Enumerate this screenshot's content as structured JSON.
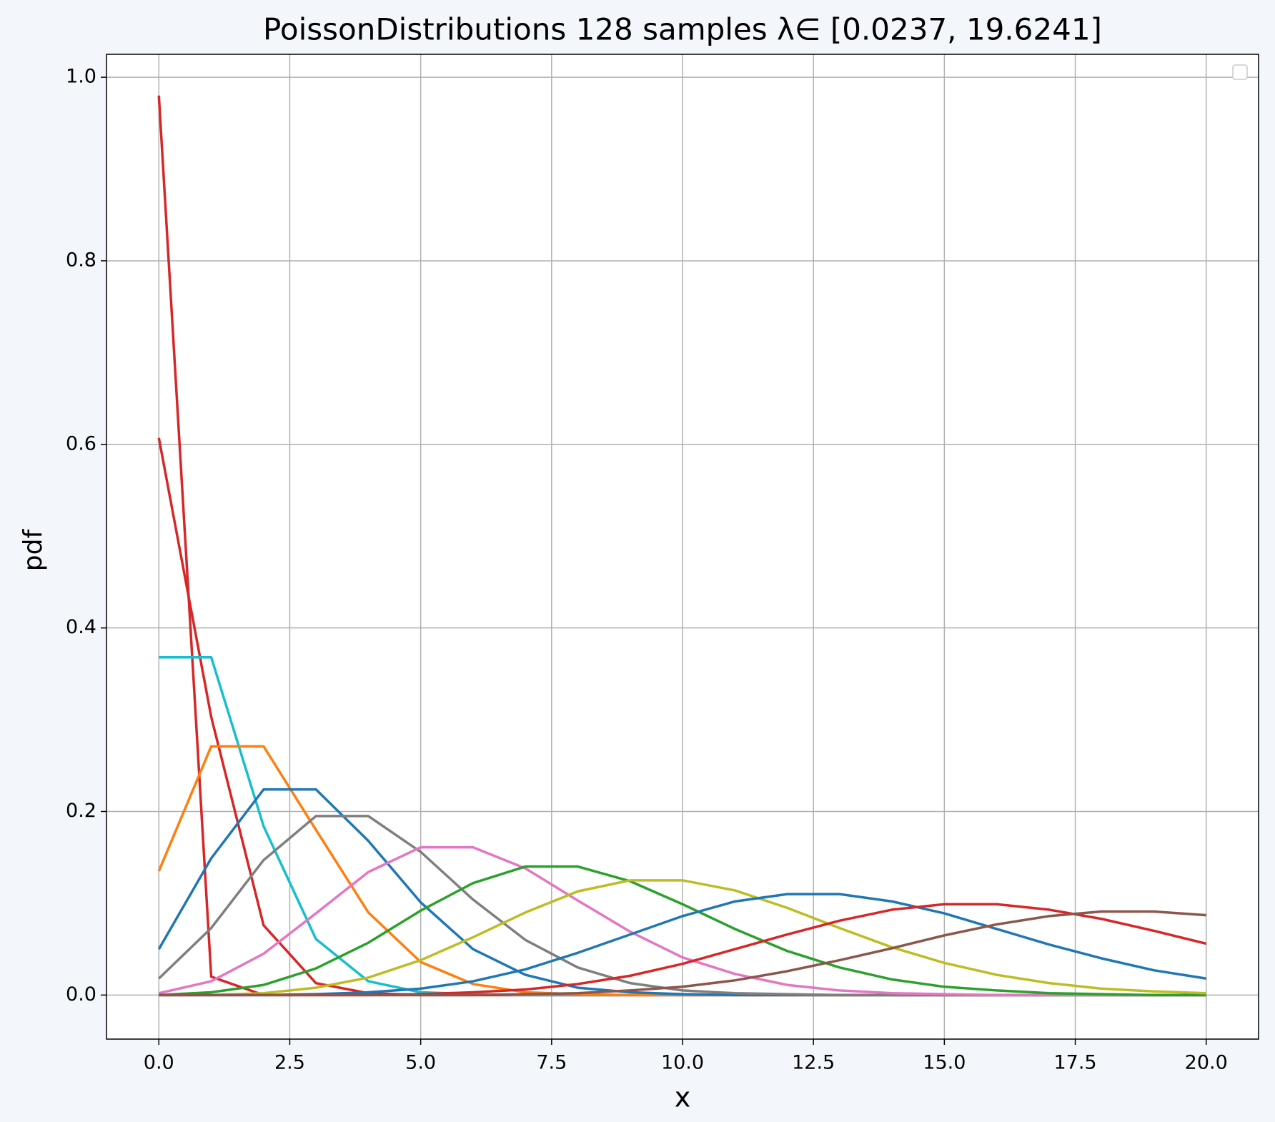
{
  "chart_data": {
    "type": "line",
    "title": "PoissonDistributions 128 samples λ∈ [0.0237, 19.6241]",
    "x_label": "x",
    "y_label": "pdf",
    "x": [
      0,
      1,
      2,
      3,
      4,
      5,
      6,
      7,
      8,
      9,
      10,
      11,
      12,
      13,
      14,
      15,
      16,
      17,
      18,
      19,
      20
    ],
    "series": [
      {
        "color": "#d62728",
        "values": [
          0.98,
          0.02,
          0.0,
          0,
          0,
          0,
          0,
          0,
          0,
          0,
          0,
          0,
          0,
          0,
          0,
          0,
          0,
          0,
          0,
          0,
          0
        ]
      },
      {
        "color": "#d62728",
        "values": [
          0.607,
          0.303,
          0.076,
          0.013,
          0.002,
          0,
          0,
          0,
          0,
          0,
          0,
          0,
          0,
          0,
          0,
          0,
          0,
          0,
          0,
          0,
          0
        ]
      },
      {
        "color": "#17becf",
        "values": [
          0.368,
          0.368,
          0.184,
          0.061,
          0.015,
          0.003,
          0.001,
          0,
          0,
          0,
          0,
          0,
          0,
          0,
          0,
          0,
          0,
          0,
          0,
          0,
          0
        ]
      },
      {
        "color": "#ff7f0e",
        "values": [
          0.135,
          0.271,
          0.271,
          0.18,
          0.09,
          0.036,
          0.012,
          0.003,
          0.001,
          0,
          0,
          0,
          0,
          0,
          0,
          0,
          0,
          0,
          0,
          0,
          0
        ]
      },
      {
        "color": "#1f77b4",
        "values": [
          0.05,
          0.149,
          0.224,
          0.224,
          0.168,
          0.101,
          0.05,
          0.022,
          0.008,
          0.003,
          0.001,
          0,
          0,
          0,
          0,
          0,
          0,
          0,
          0,
          0,
          0
        ]
      },
      {
        "color": "#7f7f7f",
        "values": [
          0.018,
          0.073,
          0.147,
          0.195,
          0.195,
          0.156,
          0.104,
          0.06,
          0.03,
          0.013,
          0.005,
          0.002,
          0.001,
          0,
          0,
          0,
          0,
          0,
          0,
          0,
          0
        ]
      },
      {
        "color": "#e377c2",
        "values": [
          0.002,
          0.015,
          0.045,
          0.089,
          0.134,
          0.161,
          0.161,
          0.138,
          0.103,
          0.069,
          0.041,
          0.023,
          0.011,
          0.005,
          0.002,
          0.001,
          0,
          0,
          0,
          0,
          0
        ]
      },
      {
        "color": "#2ca02c",
        "values": [
          0.0,
          0.003,
          0.011,
          0.029,
          0.057,
          0.092,
          0.122,
          0.14,
          0.14,
          0.124,
          0.099,
          0.072,
          0.048,
          0.03,
          0.017,
          0.009,
          0.005,
          0.002,
          0.001,
          0.0,
          0.0
        ]
      },
      {
        "color": "#bcbd22",
        "values": [
          0,
          0,
          0.002,
          0.008,
          0.019,
          0.038,
          0.063,
          0.09,
          0.113,
          0.125,
          0.125,
          0.114,
          0.095,
          0.073,
          0.052,
          0.035,
          0.022,
          0.013,
          0.007,
          0.004,
          0.002
        ]
      },
      {
        "color": "#1f77b4",
        "values": [
          0,
          0,
          0,
          0.001,
          0.003,
          0.007,
          0.015,
          0.028,
          0.046,
          0.066,
          0.086,
          0.102,
          0.11,
          0.11,
          0.102,
          0.089,
          0.072,
          0.055,
          0.04,
          0.027,
          0.018
        ]
      },
      {
        "color": "#d62728",
        "values": [
          0,
          0,
          0,
          0,
          0,
          0.001,
          0.003,
          0.006,
          0.012,
          0.021,
          0.034,
          0.05,
          0.066,
          0.081,
          0.093,
          0.099,
          0.099,
          0.093,
          0.083,
          0.07,
          0.056
        ]
      },
      {
        "color": "#8c564b",
        "values": [
          0,
          0,
          0,
          0,
          0,
          0,
          0,
          0.001,
          0.002,
          0.005,
          0.009,
          0.016,
          0.026,
          0.038,
          0.051,
          0.065,
          0.077,
          0.086,
          0.091,
          0.091,
          0.087
        ]
      }
    ],
    "xlim": [
      -1,
      21
    ],
    "ylim": [
      -0.048,
      1.025
    ],
    "xticks": [
      {
        "value": 0,
        "label": "0.0"
      },
      {
        "value": 2.5,
        "label": "2.5"
      },
      {
        "value": 5,
        "label": "5.0"
      },
      {
        "value": 7.5,
        "label": "7.5"
      },
      {
        "value": 10,
        "label": "10.0"
      },
      {
        "value": 12.5,
        "label": "12.5"
      },
      {
        "value": 15,
        "label": "15.0"
      },
      {
        "value": 17.5,
        "label": "17.5"
      },
      {
        "value": 20,
        "label": "20.0"
      }
    ],
    "yticks": [
      {
        "value": 0,
        "label": "0.0"
      },
      {
        "value": 0.2,
        "label": "0.2"
      },
      {
        "value": 0.4,
        "label": "0.4"
      },
      {
        "value": 0.6,
        "label": "0.6"
      },
      {
        "value": 0.8,
        "label": "0.8"
      },
      {
        "value": 1,
        "label": "1.0"
      }
    ],
    "grid": true
  }
}
